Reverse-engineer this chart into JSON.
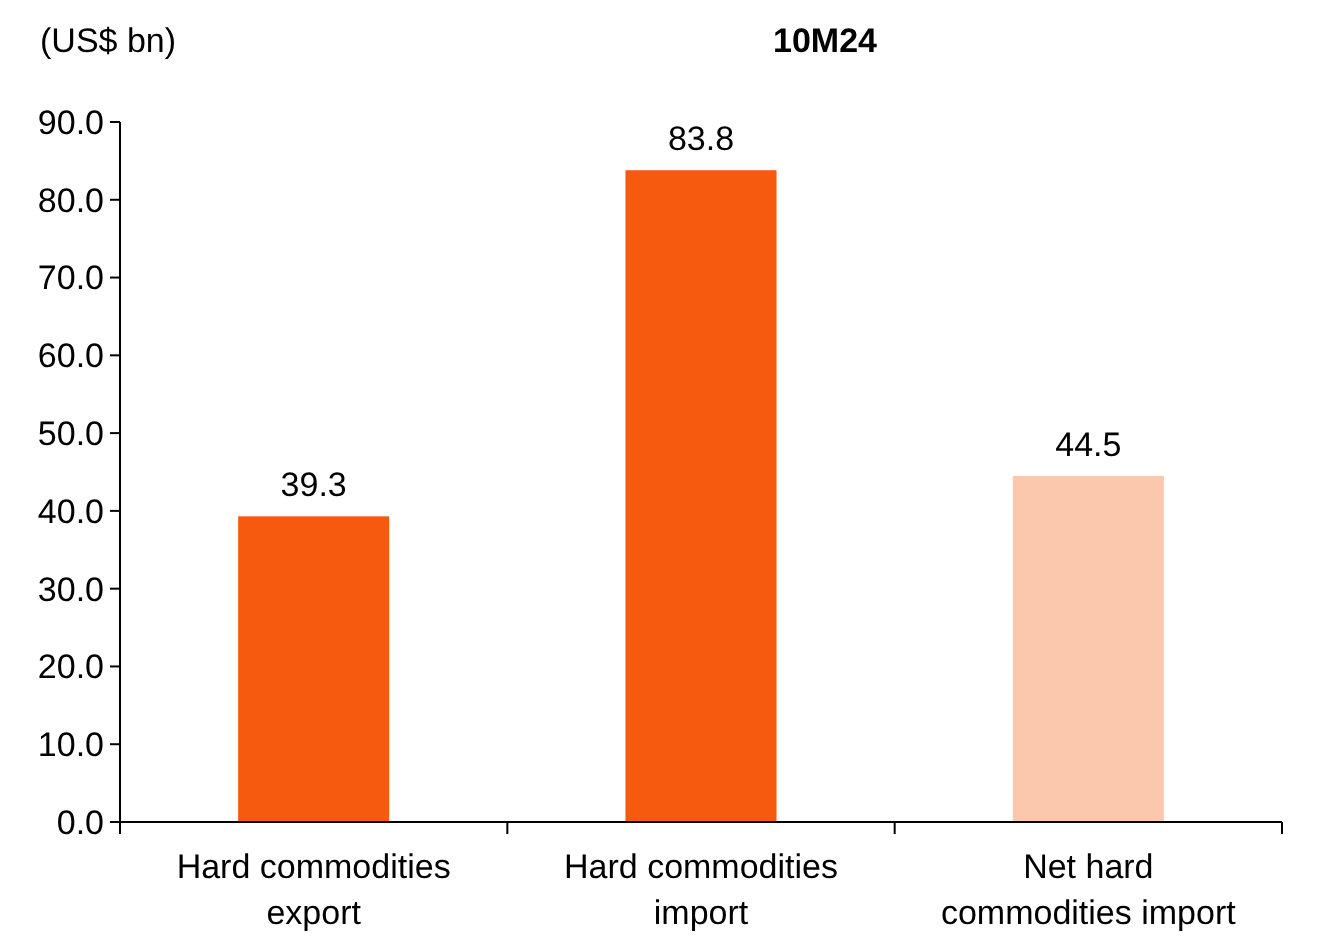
{
  "chart_data": {
    "type": "bar",
    "title": "10M24",
    "ylabel": "(US$ bn)",
    "categories": [
      "Hard commodities export",
      "Hard commodities import",
      "Net hard commodities import"
    ],
    "values": [
      39.3,
      83.8,
      44.5
    ],
    "colors": [
      "#f55a0f",
      "#f55a0f",
      "#fbc8ae"
    ],
    "ylim": [
      0,
      90
    ],
    "yticks": [
      {
        "value": 0,
        "label": "0.0"
      },
      {
        "value": 10,
        "label": "10.0"
      },
      {
        "value": 20,
        "label": "20.0"
      },
      {
        "value": 30,
        "label": "30.0"
      },
      {
        "value": 40,
        "label": "40.0"
      },
      {
        "value": 50,
        "label": "50.0"
      },
      {
        "value": 60,
        "label": "60.0"
      },
      {
        "value": 70,
        "label": "70.0"
      },
      {
        "value": 80,
        "label": "80.0"
      },
      {
        "value": 90,
        "label": "90.0"
      }
    ],
    "data_labels": true
  }
}
